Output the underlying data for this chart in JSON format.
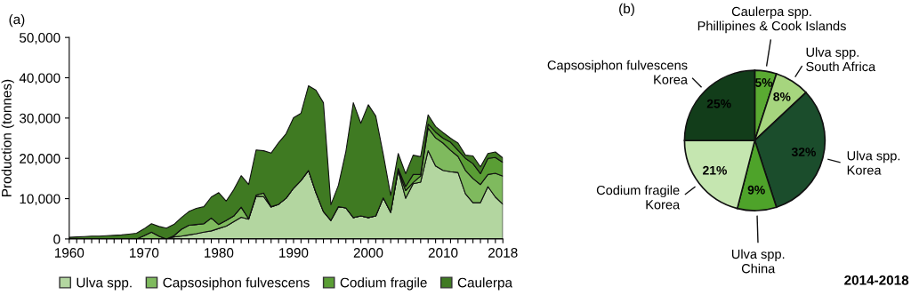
{
  "chart_data": [
    {
      "type": "area",
      "title": "(a)",
      "ylabel": "Production (tonnes)",
      "stacked": true,
      "legend": "bottom",
      "grid": false,
      "x": [
        1960,
        1961,
        1962,
        1963,
        1964,
        1965,
        1966,
        1967,
        1968,
        1969,
        1970,
        1971,
        1972,
        1973,
        1974,
        1975,
        1976,
        1977,
        1978,
        1979,
        1980,
        1981,
        1982,
        1983,
        1984,
        1985,
        1986,
        1987,
        1988,
        1989,
        1990,
        1991,
        1992,
        1993,
        1994,
        1995,
        1996,
        1997,
        1998,
        1999,
        2000,
        2001,
        2002,
        2003,
        2004,
        2005,
        2006,
        2007,
        2008,
        2009,
        2010,
        2011,
        2012,
        2013,
        2014,
        2015,
        2016,
        2017,
        2018
      ],
      "xlim": [
        1960,
        2018
      ],
      "xticks": [
        1960,
        {
          "value": 1961,
          "label": null
        },
        {
          "value": 1962,
          "label": null
        },
        {
          "value": 1963,
          "label": null
        },
        {
          "value": 1964,
          "label": null
        },
        {
          "value": 1965,
          "label": null
        },
        {
          "value": 1966,
          "label": null
        },
        {
          "value": 1967,
          "label": null
        },
        {
          "value": 1968,
          "label": null
        },
        {
          "value": 1969,
          "label": null
        },
        1970,
        {
          "value": 1971,
          "label": null
        },
        {
          "value": 1972,
          "label": null
        },
        {
          "value": 1973,
          "label": null
        },
        {
          "value": 1974,
          "label": null
        },
        {
          "value": 1975,
          "label": null
        },
        {
          "value": 1976,
          "label": null
        },
        {
          "value": 1977,
          "label": null
        },
        {
          "value": 1978,
          "label": null
        },
        {
          "value": 1979,
          "label": null
        },
        1980,
        {
          "value": 1981,
          "label": null
        },
        {
          "value": 1982,
          "label": null
        },
        {
          "value": 1983,
          "label": null
        },
        {
          "value": 1984,
          "label": null
        },
        {
          "value": 1985,
          "label": null
        },
        {
          "value": 1986,
          "label": null
        },
        {
          "value": 1987,
          "label": null
        },
        {
          "value": 1988,
          "label": null
        },
        {
          "value": 1989,
          "label": null
        },
        1990,
        {
          "value": 1991,
          "label": null
        },
        {
          "value": 1992,
          "label": null
        },
        {
          "value": 1993,
          "label": null
        },
        {
          "value": 1994,
          "label": null
        },
        {
          "value": 1995,
          "label": null
        },
        {
          "value": 1996,
          "label": null
        },
        {
          "value": 1997,
          "label": null
        },
        {
          "value": 1998,
          "label": null
        },
        {
          "value": 1999,
          "label": null
        },
        2000,
        {
          "value": 2001,
          "label": null
        },
        {
          "value": 2002,
          "label": null
        },
        {
          "value": 2003,
          "label": null
        },
        {
          "value": 2004,
          "label": null
        },
        {
          "value": 2005,
          "label": null
        },
        {
          "value": 2006,
          "label": null
        },
        {
          "value": 2007,
          "label": null
        },
        {
          "value": 2008,
          "label": null
        },
        {
          "value": 2009,
          "label": null
        },
        2010,
        {
          "value": 2011,
          "label": null
        },
        {
          "value": 2012,
          "label": null
        },
        {
          "value": 2013,
          "label": null
        },
        {
          "value": 2014,
          "label": null
        },
        {
          "value": 2015,
          "label": null
        },
        {
          "value": 2016,
          "label": null
        },
        {
          "value": 2017,
          "label": null
        },
        2018
      ],
      "ylim": [
        0,
        50000
      ],
      "yticks": [
        0,
        {
          "value": 10000,
          "label": "10,000"
        },
        {
          "value": 20000,
          "label": "20,000"
        },
        {
          "value": 30000,
          "label": "30,000"
        },
        {
          "value": 40000,
          "label": "40,000"
        },
        {
          "value": 50000,
          "label": "50,000"
        }
      ],
      "series": [
        {
          "name": "Ulva spp.",
          "color": "#b3d6a0",
          "values": [
            0,
            0,
            0,
            0,
            0,
            0,
            0,
            0,
            0,
            0,
            0,
            0,
            0,
            0,
            500,
            700,
            1000,
            1300,
            1700,
            2000,
            2600,
            3200,
            4300,
            5400,
            4900,
            10600,
            10500,
            7900,
            8600,
            10100,
            12600,
            14500,
            17000,
            11500,
            6800,
            4600,
            8000,
            7700,
            5300,
            5700,
            5300,
            5700,
            10200,
            6600,
            17000,
            10100,
            13700,
            14100,
            21900,
            18100,
            17000,
            16700,
            16500,
            11200,
            9000,
            9000,
            13000,
            10400,
            8600
          ]
        },
        {
          "name": "Capsosiphon fulvescens",
          "color": "#7fba5e",
          "values": [
            0,
            0,
            0,
            0,
            0,
            0,
            0,
            0,
            0,
            0,
            800,
            1700,
            700,
            0,
            300,
            1700,
            2400,
            2300,
            2100,
            3200,
            1000,
            1400,
            1400,
            2500,
            100,
            300,
            900,
            100,
            0,
            0,
            0,
            0,
            0,
            0,
            0,
            0,
            0,
            0,
            0,
            0,
            0,
            0,
            0,
            0,
            0,
            1900,
            300,
            1500,
            5600,
            7000,
            6800,
            5300,
            4000,
            5800,
            6000,
            4500,
            3000,
            5900,
            7000
          ]
        },
        {
          "name": "Codium fragile",
          "color": "#5a9e35",
          "values": [
            0,
            0,
            0,
            0,
            0,
            0,
            0,
            0,
            0,
            0,
            0,
            0,
            0,
            0,
            0,
            0,
            0,
            0,
            0,
            0,
            0,
            0,
            0,
            0,
            0,
            0,
            0,
            0,
            0,
            0,
            0,
            0,
            0,
            0,
            0,
            0,
            0,
            0,
            0,
            0,
            0,
            0,
            0,
            0,
            500,
            1000,
            2000,
            400,
            1000,
            1400,
            1200,
            2000,
            1500,
            3000,
            3700,
            2700,
            4000,
            3900,
            3400
          ]
        },
        {
          "name": "Caulerpa",
          "color": "#3f7a22",
          "values": [
            400,
            500,
            600,
            700,
            700,
            800,
            900,
            1000,
            1200,
            1400,
            1700,
            2100,
            2400,
            2700,
            2800,
            2900,
            3400,
            4000,
            4200,
            5200,
            7900,
            4800,
            6500,
            7800,
            8500,
            11200,
            10500,
            13300,
            15300,
            16000,
            17500,
            16700,
            21000,
            25400,
            27000,
            3900,
            5300,
            14000,
            28500,
            23000,
            28000,
            24800,
            10800,
            4200,
            3700,
            3200,
            4800,
            4400,
            2300,
            1400,
            1400,
            1000,
            1800,
            800,
            1900,
            1700,
            1200,
            1400,
            1100
          ]
        }
      ]
    },
    {
      "type": "pie",
      "title": "(b)",
      "annotations": [
        "2014-2018"
      ],
      "categories": [
        "Caulerpa spp.\nPhillipines & Cook Islands",
        "Ulva spp.\nSouth Africa",
        "Ulva spp.\nKorea",
        "Ulva spp.\nChina",
        "Codium fragile\nKorea",
        "Capsosiphon fulvescens\nKorea"
      ],
      "values": [
        5,
        8,
        32,
        9,
        21,
        25
      ],
      "value_labels": [
        "5%",
        "8%",
        "32%",
        "9%",
        "21%",
        "25%"
      ],
      "colors": [
        "#5aaa32",
        "#a6d57e",
        "#1b4d2c",
        "#4ea32a",
        "#c5e6b0",
        "#123d1a"
      ]
    }
  ]
}
